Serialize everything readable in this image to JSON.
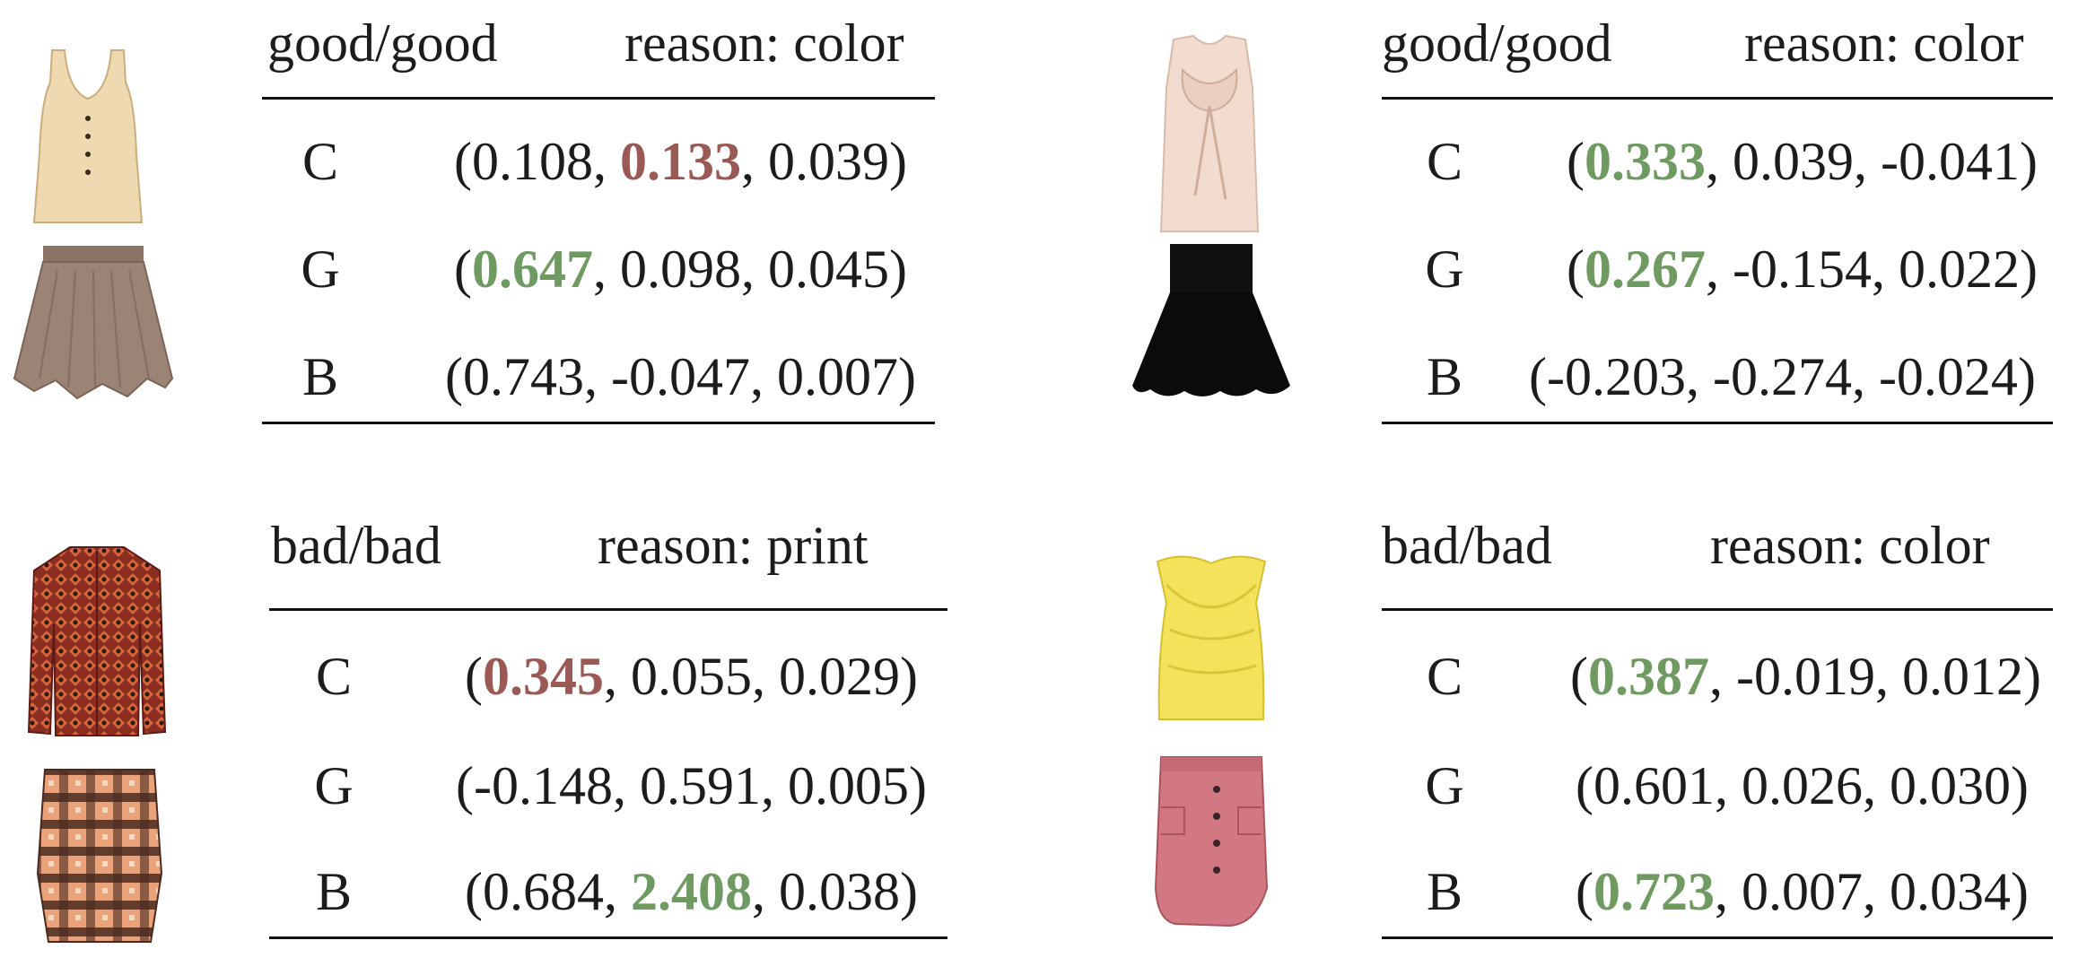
{
  "colors": {
    "negative_highlight": "#9a5955",
    "positive_highlight": "#6f9a62",
    "text": "#1c1c1c"
  },
  "panels": [
    {
      "label": "good/good",
      "reason": "reason: color",
      "top_garment": "sleeveless-cream-button-top",
      "bottom_garment": "taupe-tulle-tiered-skirt",
      "rows": [
        {
          "name": "C",
          "values": [
            {
              "text": "0.108",
              "hl": null
            },
            {
              "text": "0.133",
              "hl": "neg"
            },
            {
              "text": "0.039",
              "hl": null
            }
          ]
        },
        {
          "name": "G",
          "values": [
            {
              "text": "0.647",
              "hl": "pos"
            },
            {
              "text": "0.098",
              "hl": null
            },
            {
              "text": "0.045",
              "hl": null
            }
          ]
        },
        {
          "name": "B",
          "values": [
            {
              "text": "0.743",
              "hl": null
            },
            {
              "text": "-0.047",
              "hl": null
            },
            {
              "text": "0.007",
              "hl": null
            }
          ]
        }
      ]
    },
    {
      "label": "good/good",
      "reason": "reason: color",
      "top_garment": "blush-bow-sleeveless-blouse",
      "bottom_garment": "black-flared-skirt",
      "rows": [
        {
          "name": "C",
          "values": [
            {
              "text": "0.333",
              "hl": "pos"
            },
            {
              "text": "0.039",
              "hl": null
            },
            {
              "text": "-0.041",
              "hl": null
            }
          ]
        },
        {
          "name": "G",
          "values": [
            {
              "text": "0.267",
              "hl": "pos"
            },
            {
              "text": "-0.154",
              "hl": null
            },
            {
              "text": "0.022",
              "hl": null
            }
          ]
        },
        {
          "name": "B",
          "values": [
            {
              "text": "-0.203",
              "hl": null
            },
            {
              "text": "-0.274",
              "hl": null
            },
            {
              "text": "-0.024",
              "hl": null
            }
          ]
        }
      ]
    },
    {
      "label": "bad/bad",
      "reason": "reason: print",
      "top_garment": "red-geometric-print-shirt",
      "bottom_garment": "plaid-pencil-skirt",
      "rows": [
        {
          "name": "C",
          "values": [
            {
              "text": "0.345",
              "hl": "neg"
            },
            {
              "text": "0.055",
              "hl": null
            },
            {
              "text": "0.029",
              "hl": null
            }
          ]
        },
        {
          "name": "G",
          "values": [
            {
              "text": "-0.148",
              "hl": null
            },
            {
              "text": "0.591",
              "hl": null
            },
            {
              "text": "0.005",
              "hl": null
            }
          ]
        },
        {
          "name": "B",
          "values": [
            {
              "text": "0.684",
              "hl": null
            },
            {
              "text": "2.408",
              "hl": "pos"
            },
            {
              "text": "0.038",
              "hl": null
            }
          ]
        }
      ]
    },
    {
      "label": "bad/bad",
      "reason": "reason: color",
      "top_garment": "yellow-strapless-top",
      "bottom_garment": "pink-button-wrap-skirt",
      "rows": [
        {
          "name": "C",
          "values": [
            {
              "text": "0.387",
              "hl": "pos"
            },
            {
              "text": "-0.019",
              "hl": null
            },
            {
              "text": "0.012",
              "hl": null
            }
          ]
        },
        {
          "name": "G",
          "values": [
            {
              "text": "0.601",
              "hl": null
            },
            {
              "text": "0.026",
              "hl": null
            },
            {
              "text": "0.030",
              "hl": null
            }
          ]
        },
        {
          "name": "B",
          "values": [
            {
              "text": "0.723",
              "hl": "pos"
            },
            {
              "text": "0.007",
              "hl": null
            },
            {
              "text": "0.034",
              "hl": null
            }
          ]
        }
      ]
    }
  ]
}
